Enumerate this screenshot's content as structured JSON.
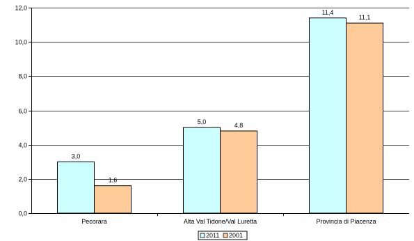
{
  "chart_data": {
    "type": "bar",
    "categories": [
      "Pecorara",
      "Alta Val Tidone/Val Luretta",
      "Provincia di Piacenza"
    ],
    "series": [
      {
        "name": "2011",
        "values": [
          3.0,
          5.0,
          11.4
        ],
        "labels": [
          "3,0",
          "5,0",
          "11,4"
        ],
        "color": "#CCFFFF"
      },
      {
        "name": "2001",
        "values": [
          1.6,
          4.8,
          11.1
        ],
        "labels": [
          "1,6",
          "4,8",
          "11,1"
        ],
        "color": "#FFCC99"
      }
    ],
    "ylim": [
      0,
      12
    ],
    "yticks": [
      0,
      2,
      4,
      6,
      8,
      10,
      12
    ],
    "ytick_labels": [
      "0,0",
      "2,0",
      "4,0",
      "6,0",
      "8,0",
      "10,0",
      "12,0"
    ],
    "grid": true,
    "legend_position": "bottom-center"
  }
}
